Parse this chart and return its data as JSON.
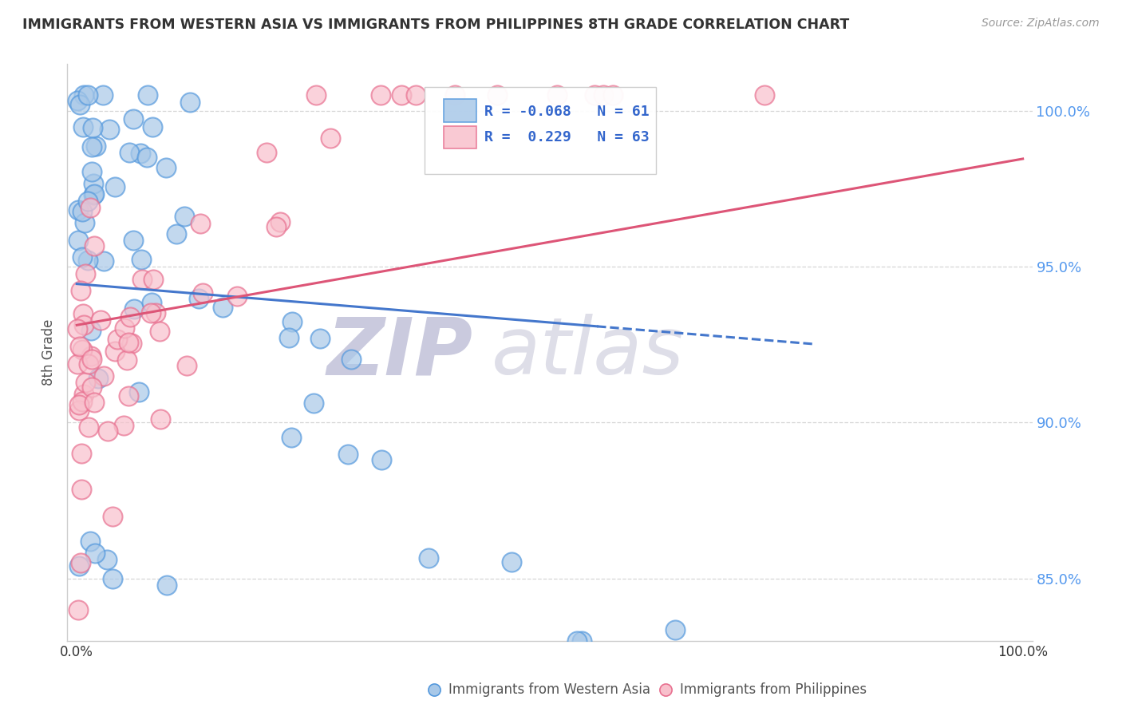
{
  "title": "IMMIGRANTS FROM WESTERN ASIA VS IMMIGRANTS FROM PHILIPPINES 8TH GRADE CORRELATION CHART",
  "source": "Source: ZipAtlas.com",
  "ylabel": "8th Grade",
  "xlim": [
    0.0,
    1.0
  ],
  "ylim": [
    0.83,
    1.015
  ],
  "yticks": [
    0.85,
    0.9,
    0.95,
    1.0
  ],
  "ytick_labels": [
    "85.0%",
    "90.0%",
    "95.0%",
    "100.0%"
  ],
  "legend_r_blue": "-0.068",
  "legend_n_blue": "61",
  "legend_r_pink": "0.229",
  "legend_n_pink": "63",
  "blue_face_color": "#A8C8E8",
  "blue_edge_color": "#5599DD",
  "pink_face_color": "#F8C0CC",
  "pink_edge_color": "#E87090",
  "trend_blue_color": "#4477CC",
  "trend_pink_color": "#DD5577",
  "background_color": "#FFFFFF",
  "grid_color": "#CCCCCC",
  "watermark_zip": "ZIP",
  "watermark_atlas": "atlas",
  "watermark_color": "#DDDDE8"
}
